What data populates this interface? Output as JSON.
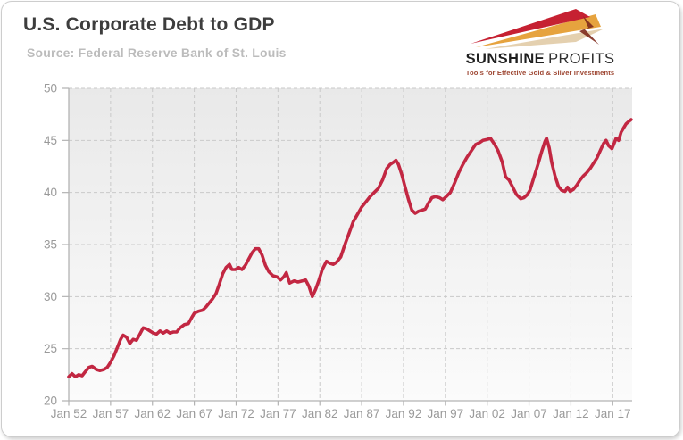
{
  "header": {
    "title": "U.S. Corporate Debt to GDP",
    "source": "Source: Federal Reserve Bank of St. Louis"
  },
  "logo": {
    "name_primary": "SUNSHINE",
    "name_secondary": "PROFITS",
    "tagline": "Tools for Effective Gold & Silver Investments",
    "ray_colors": {
      "red": "#c62132",
      "gold": "#e6a33e",
      "tan": "#ddc49b",
      "bolt": "#7e2a1c"
    }
  },
  "chart_data": {
    "type": "line",
    "title": "U.S. Corporate Debt to GDP",
    "xlabel": "",
    "ylabel": "",
    "ylim": [
      20,
      50
    ],
    "x_range": [
      1952,
      2019.3
    ],
    "grid": "dashed",
    "legend": "none",
    "y_ticks": [
      20,
      25,
      30,
      35,
      40,
      45,
      50
    ],
    "x_ticks": [
      {
        "year": 1952,
        "label": "Jan 52"
      },
      {
        "year": 1957,
        "label": "Jan 57"
      },
      {
        "year": 1962,
        "label": "Jan 62"
      },
      {
        "year": 1967,
        "label": "Jan 67"
      },
      {
        "year": 1972,
        "label": "Jan 72"
      },
      {
        "year": 1977,
        "label": "Jan 77"
      },
      {
        "year": 1982,
        "label": "Jan 82"
      },
      {
        "year": 1987,
        "label": "Jan 87"
      },
      {
        "year": 1992,
        "label": "Jan 92"
      },
      {
        "year": 1997,
        "label": "Jan 97"
      },
      {
        "year": 2002,
        "label": "Jan 02"
      },
      {
        "year": 2007,
        "label": "Jan 07"
      },
      {
        "year": 2012,
        "label": "Jan 12"
      },
      {
        "year": 2017,
        "label": "Jan 17"
      }
    ],
    "style": {
      "line": "#c22742",
      "line_width": 3.6,
      "grid": "#c9c9c9",
      "axis": "#b3b3b3",
      "label": "#9a9a9a",
      "bg_top": "#e9e9e9",
      "bg_bottom": "#fbfbfb"
    },
    "series": [
      {
        "name": "U.S. Corporate Debt to GDP (%)",
        "points": [
          [
            1952.0,
            22.3
          ],
          [
            1952.4,
            22.6
          ],
          [
            1952.8,
            22.3
          ],
          [
            1953.2,
            22.5
          ],
          [
            1953.6,
            22.4
          ],
          [
            1954.0,
            22.8
          ],
          [
            1954.4,
            23.2
          ],
          [
            1954.8,
            23.3
          ],
          [
            1955.3,
            23.0
          ],
          [
            1955.7,
            22.9
          ],
          [
            1956.2,
            23.0
          ],
          [
            1956.6,
            23.2
          ],
          [
            1957.0,
            23.7
          ],
          [
            1957.4,
            24.3
          ],
          [
            1957.8,
            25.1
          ],
          [
            1958.2,
            25.9
          ],
          [
            1958.5,
            26.3
          ],
          [
            1958.9,
            26.1
          ],
          [
            1959.3,
            25.5
          ],
          [
            1959.7,
            25.9
          ],
          [
            1960.1,
            25.8
          ],
          [
            1960.5,
            26.4
          ],
          [
            1960.9,
            27.0
          ],
          [
            1961.3,
            26.9
          ],
          [
            1961.7,
            26.7
          ],
          [
            1962.1,
            26.5
          ],
          [
            1962.5,
            26.4
          ],
          [
            1962.9,
            26.7
          ],
          [
            1963.3,
            26.5
          ],
          [
            1963.7,
            26.7
          ],
          [
            1964.1,
            26.5
          ],
          [
            1964.5,
            26.6
          ],
          [
            1964.9,
            26.6
          ],
          [
            1965.3,
            27.0
          ],
          [
            1965.8,
            27.3
          ],
          [
            1966.3,
            27.4
          ],
          [
            1966.7,
            28.0
          ],
          [
            1967.0,
            28.4
          ],
          [
            1967.5,
            28.6
          ],
          [
            1968.0,
            28.7
          ],
          [
            1968.4,
            29.0
          ],
          [
            1968.8,
            29.4
          ],
          [
            1969.2,
            29.8
          ],
          [
            1969.6,
            30.3
          ],
          [
            1970.0,
            31.2
          ],
          [
            1970.4,
            32.2
          ],
          [
            1970.8,
            32.8
          ],
          [
            1971.2,
            33.1
          ],
          [
            1971.5,
            32.6
          ],
          [
            1971.9,
            32.6
          ],
          [
            1972.3,
            32.8
          ],
          [
            1972.7,
            32.6
          ],
          [
            1973.1,
            33.0
          ],
          [
            1973.5,
            33.6
          ],
          [
            1973.9,
            34.2
          ],
          [
            1974.3,
            34.6
          ],
          [
            1974.7,
            34.6
          ],
          [
            1975.1,
            34.0
          ],
          [
            1975.5,
            33.0
          ],
          [
            1975.9,
            32.4
          ],
          [
            1976.4,
            32.0
          ],
          [
            1976.9,
            31.9
          ],
          [
            1977.3,
            31.6
          ],
          [
            1977.7,
            31.9
          ],
          [
            1978.0,
            32.3
          ],
          [
            1978.4,
            31.3
          ],
          [
            1978.9,
            31.5
          ],
          [
            1979.4,
            31.4
          ],
          [
            1979.9,
            31.5
          ],
          [
            1980.3,
            31.6
          ],
          [
            1980.7,
            31.0
          ],
          [
            1981.1,
            30.0
          ],
          [
            1981.5,
            30.7
          ],
          [
            1981.9,
            31.6
          ],
          [
            1982.3,
            32.6
          ],
          [
            1982.8,
            33.4
          ],
          [
            1983.2,
            33.2
          ],
          [
            1983.6,
            33.1
          ],
          [
            1984.0,
            33.3
          ],
          [
            1984.5,
            33.8
          ],
          [
            1985.0,
            35.0
          ],
          [
            1985.5,
            36.1
          ],
          [
            1986.0,
            37.2
          ],
          [
            1986.5,
            37.9
          ],
          [
            1987.0,
            38.6
          ],
          [
            1987.5,
            39.1
          ],
          [
            1988.0,
            39.6
          ],
          [
            1988.5,
            40.0
          ],
          [
            1989.0,
            40.4
          ],
          [
            1989.5,
            41.2
          ],
          [
            1990.0,
            42.3
          ],
          [
            1990.4,
            42.7
          ],
          [
            1990.8,
            42.9
          ],
          [
            1991.1,
            43.1
          ],
          [
            1991.4,
            42.7
          ],
          [
            1991.8,
            41.7
          ],
          [
            1992.2,
            40.5
          ],
          [
            1992.6,
            39.3
          ],
          [
            1993.0,
            38.3
          ],
          [
            1993.4,
            38.0
          ],
          [
            1993.8,
            38.2
          ],
          [
            1994.2,
            38.3
          ],
          [
            1994.6,
            38.4
          ],
          [
            1995.0,
            39.0
          ],
          [
            1995.4,
            39.5
          ],
          [
            1995.8,
            39.6
          ],
          [
            1996.3,
            39.5
          ],
          [
            1996.7,
            39.3
          ],
          [
            1997.1,
            39.6
          ],
          [
            1997.6,
            40.0
          ],
          [
            1998.1,
            40.9
          ],
          [
            1998.6,
            41.9
          ],
          [
            1999.1,
            42.7
          ],
          [
            1999.6,
            43.4
          ],
          [
            2000.1,
            44.0
          ],
          [
            2000.6,
            44.6
          ],
          [
            2001.1,
            44.8
          ],
          [
            2001.5,
            45.0
          ],
          [
            2002.0,
            45.1
          ],
          [
            2002.4,
            45.2
          ],
          [
            2002.9,
            44.6
          ],
          [
            2003.3,
            44.0
          ],
          [
            2003.8,
            42.9
          ],
          [
            2004.2,
            41.5
          ],
          [
            2004.6,
            41.2
          ],
          [
            2005.0,
            40.6
          ],
          [
            2005.5,
            39.8
          ],
          [
            2006.0,
            39.4
          ],
          [
            2006.4,
            39.5
          ],
          [
            2006.8,
            39.8
          ],
          [
            2007.1,
            40.2
          ],
          [
            2007.6,
            41.5
          ],
          [
            2008.1,
            42.8
          ],
          [
            2008.5,
            43.9
          ],
          [
            2008.9,
            44.9
          ],
          [
            2009.1,
            45.2
          ],
          [
            2009.4,
            44.3
          ],
          [
            2009.7,
            42.9
          ],
          [
            2010.1,
            41.6
          ],
          [
            2010.5,
            40.6
          ],
          [
            2010.9,
            40.2
          ],
          [
            2011.3,
            40.1
          ],
          [
            2011.6,
            40.5
          ],
          [
            2011.9,
            40.1
          ],
          [
            2012.3,
            40.3
          ],
          [
            2012.7,
            40.7
          ],
          [
            2013.1,
            41.2
          ],
          [
            2013.5,
            41.6
          ],
          [
            2013.9,
            41.9
          ],
          [
            2014.3,
            42.3
          ],
          [
            2014.7,
            42.8
          ],
          [
            2015.1,
            43.3
          ],
          [
            2015.5,
            44.0
          ],
          [
            2015.9,
            44.7
          ],
          [
            2016.2,
            45.0
          ],
          [
            2016.5,
            44.5
          ],
          [
            2016.9,
            44.2
          ],
          [
            2017.2,
            44.8
          ],
          [
            2017.4,
            45.2
          ],
          [
            2017.7,
            45.0
          ],
          [
            2018.0,
            45.8
          ],
          [
            2018.3,
            46.2
          ],
          [
            2018.6,
            46.6
          ],
          [
            2018.9,
            46.8
          ],
          [
            2019.2,
            47.0
          ]
        ]
      }
    ]
  }
}
